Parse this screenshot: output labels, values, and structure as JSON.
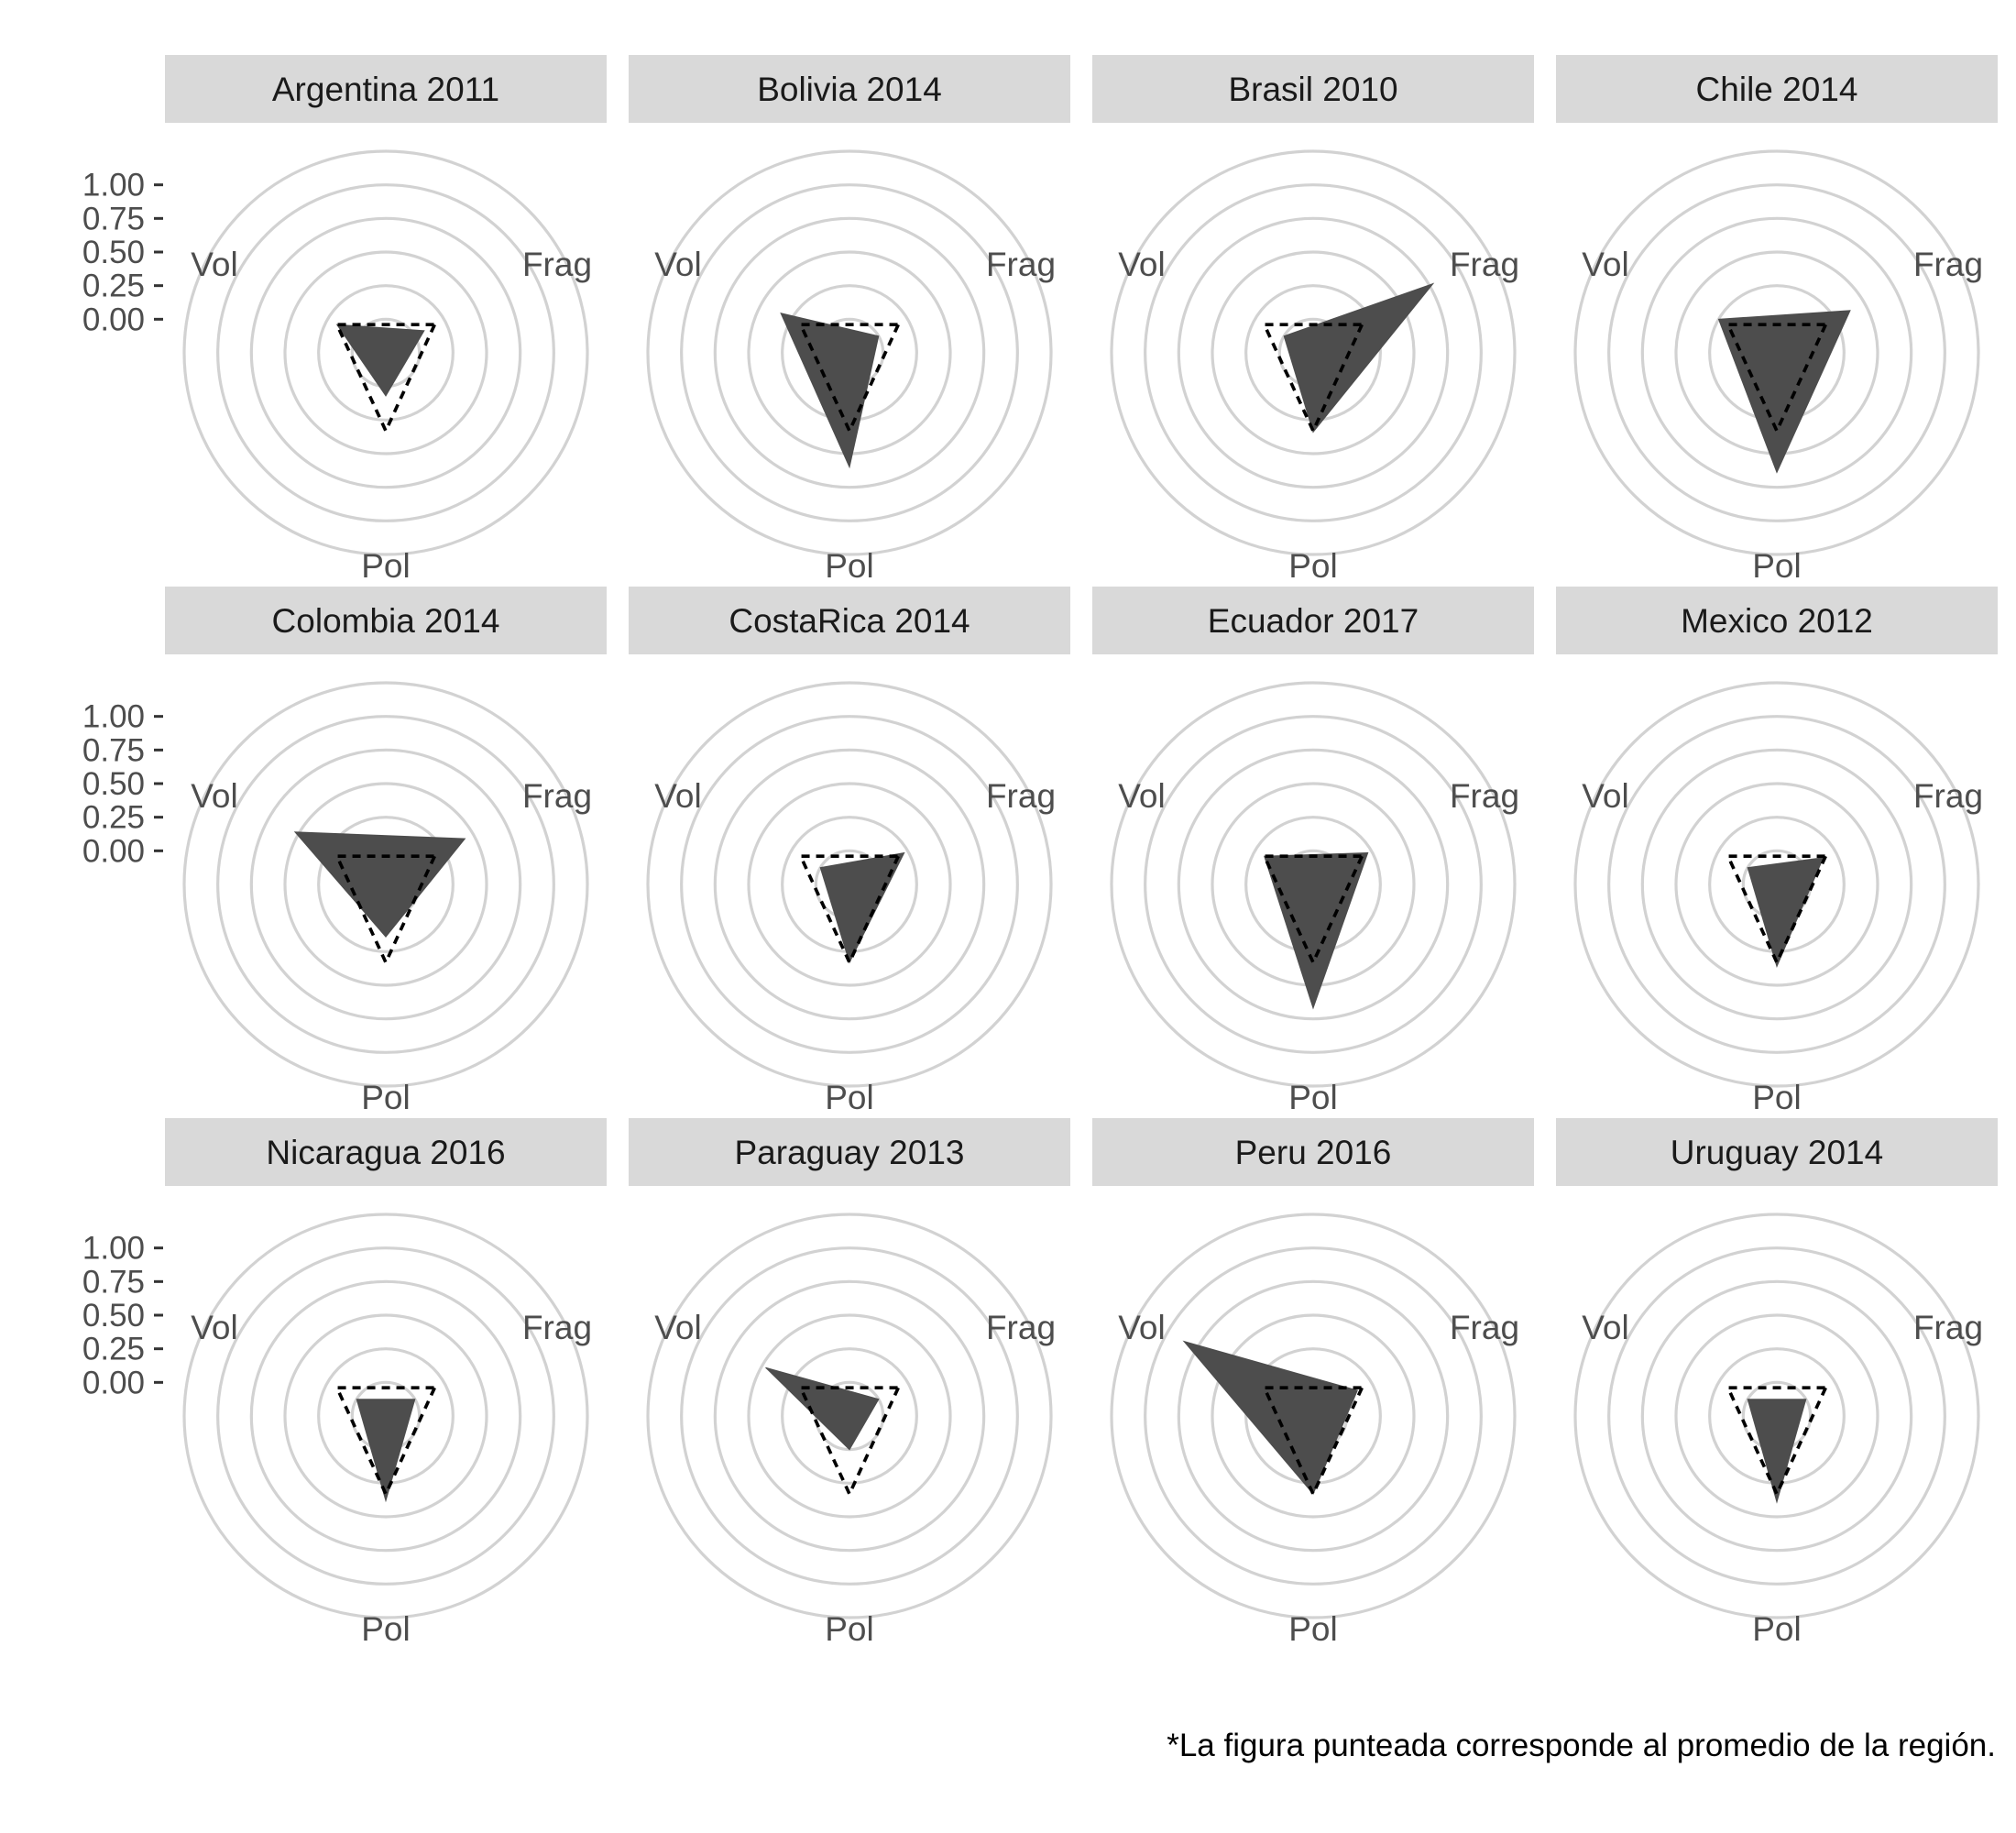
{
  "chart_data": {
    "type": "radar",
    "facet_layout": "3x4",
    "axes": [
      "Frag",
      "Pol",
      "Vol"
    ],
    "tick_labels": [
      "1.00",
      "0.75",
      "0.50",
      "0.25",
      "0.00"
    ],
    "tick_values": [
      1.0,
      0.75,
      0.5,
      0.25,
      0.0
    ],
    "rmin": -0.25,
    "rmax": 1.25,
    "grid_values": [
      -0.25,
      0.0,
      0.25,
      0.5,
      0.75,
      1.0,
      1.25
    ],
    "average": {
      "Frag": 0.17,
      "Pol": 0.33,
      "Vol": 0.17
    },
    "panels": [
      {
        "title": "Argentina 2011",
        "values": {
          "Frag": 0.08,
          "Pol": 0.07,
          "Vol": 0.17
        }
      },
      {
        "title": "Bolivia 2014",
        "values": {
          "Frag": 0.0,
          "Pol": 0.6,
          "Vol": 0.34
        }
      },
      {
        "title": "Brasil 2010",
        "values": {
          "Frag": 0.78,
          "Pol": 0.34,
          "Vol": 0.0
        }
      },
      {
        "title": "Chile 2014",
        "values": {
          "Frag": 0.38,
          "Pol": 0.64,
          "Vol": 0.25
        }
      },
      {
        "title": "Colombia 2014",
        "values": {
          "Frag": 0.43,
          "Pol": 0.14,
          "Vol": 0.53
        }
      },
      {
        "title": "CostaRica 2014",
        "values": {
          "Frag": 0.22,
          "Pol": 0.33,
          "Vol": 0.0
        }
      },
      {
        "title": "Ecuador 2017",
        "values": {
          "Frag": 0.22,
          "Pol": 0.67,
          "Vol": 0.17
        }
      },
      {
        "title": "Mexico 2012",
        "values": {
          "Frag": 0.15,
          "Pol": 0.36,
          "Vol": 0.0
        }
      },
      {
        "title": "Nicaragua 2016",
        "values": {
          "Frag": 0.0,
          "Pol": 0.38,
          "Vol": 0.0
        }
      },
      {
        "title": "Paraguay 2013",
        "values": {
          "Frag": 0.0,
          "Pol": 0.0,
          "Vol": 0.47
        }
      },
      {
        "title": "Peru 2016",
        "values": {
          "Frag": 0.13,
          "Pol": 0.33,
          "Vol": 0.86
        }
      },
      {
        "title": "Uruguay 2014",
        "values": {
          "Frag": 0.0,
          "Pol": 0.39,
          "Vol": 0.0
        }
      }
    ],
    "caption": "*La figura punteada corresponde al promedio de la región."
  }
}
